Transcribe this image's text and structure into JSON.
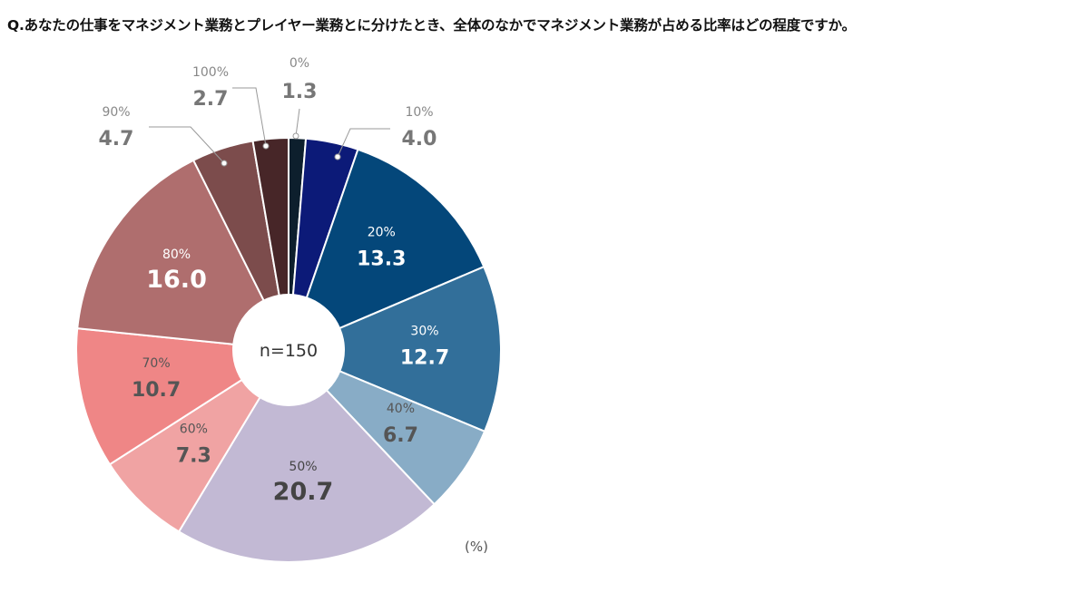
{
  "question": "Q.あなたの仕事をマネジメント業務とプレイヤー業務とに分けたとき、全体のなかでマネジメント業務が占める比率はどの程度ですか。",
  "chart_data": {
    "type": "pie",
    "style": "donut",
    "center_label": "n=150",
    "unit": "(%)",
    "slices": [
      {
        "label": "0%",
        "value": 1.3,
        "color": "#0d1f2d",
        "label_position": "outside",
        "text_color": "#777777"
      },
      {
        "label": "10%",
        "value": 4.0,
        "color": "#0c1a78",
        "label_position": "outside",
        "text_color": "#777777"
      },
      {
        "label": "20%",
        "value": 13.3,
        "color": "#04477a",
        "label_position": "inside",
        "text_color": "#ffffff"
      },
      {
        "label": "30%",
        "value": 12.7,
        "color": "#326f9a",
        "label_position": "inside",
        "text_color": "#ffffff"
      },
      {
        "label": "40%",
        "value": 6.7,
        "color": "#88acc6",
        "label_position": "inside",
        "text_color": "#555555"
      },
      {
        "label": "50%",
        "value": 20.7,
        "color": "#c2b9d4",
        "label_position": "inside",
        "text_color": "#444444"
      },
      {
        "label": "60%",
        "value": 7.3,
        "color": "#f0a3a3",
        "label_position": "inside",
        "text_color": "#555555"
      },
      {
        "label": "70%",
        "value": 10.7,
        "color": "#ef8686",
        "label_position": "inside",
        "text_color": "#555555"
      },
      {
        "label": "80%",
        "value": 16.0,
        "color": "#af6e6e",
        "label_position": "inside",
        "text_color": "#ffffff"
      },
      {
        "label": "90%",
        "value": 4.7,
        "color": "#7c4c4c",
        "label_position": "outside",
        "text_color": "#777777"
      },
      {
        "label": "100%",
        "value": 2.7,
        "color": "#472628",
        "label_position": "outside",
        "text_color": "#777777"
      }
    ]
  }
}
